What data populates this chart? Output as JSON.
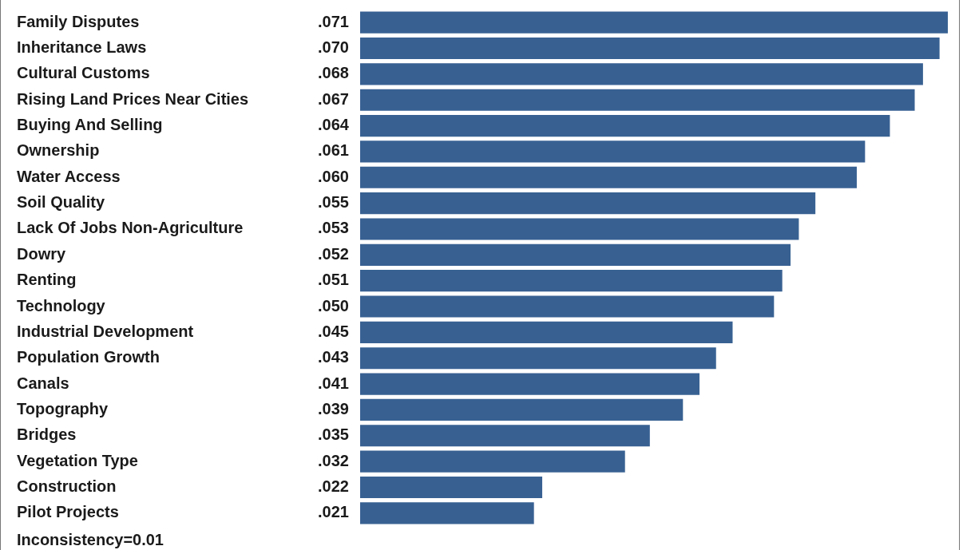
{
  "chart_data": {
    "type": "bar",
    "orientation": "horizontal",
    "categories": [
      "Family Disputes",
      "Inheritance Laws",
      "Cultural Customs",
      "Rising Land Prices Near Cities",
      "Buying And Selling",
      "Ownership",
      "Water Access",
      "Soil Quality",
      "Lack Of Jobs Non-Agriculture",
      "Dowry",
      "Renting",
      "Technology",
      "Industrial Development",
      "Population Growth",
      "Canals",
      "Topography",
      "Bridges",
      "Vegetation Type",
      "Construction",
      "Pilot Projects"
    ],
    "values": [
      0.071,
      0.07,
      0.068,
      0.067,
      0.064,
      0.061,
      0.06,
      0.055,
      0.053,
      0.052,
      0.051,
      0.05,
      0.045,
      0.043,
      0.041,
      0.039,
      0.035,
      0.032,
      0.022,
      0.021
    ],
    "value_labels": [
      ".071",
      ".070",
      ".068",
      ".067",
      ".064",
      ".061",
      ".060",
      ".055",
      ".053",
      ".052",
      ".051",
      ".050",
      ".045",
      ".043",
      ".041",
      ".039",
      ".035",
      ".032",
      ".022",
      ".021"
    ],
    "color": "#386192",
    "xlim": [
      0,
      0.071
    ],
    "tick_labels": "y",
    "grid": false,
    "legend": false,
    "annotations": [
      "Inconsistency=0.01"
    ]
  }
}
